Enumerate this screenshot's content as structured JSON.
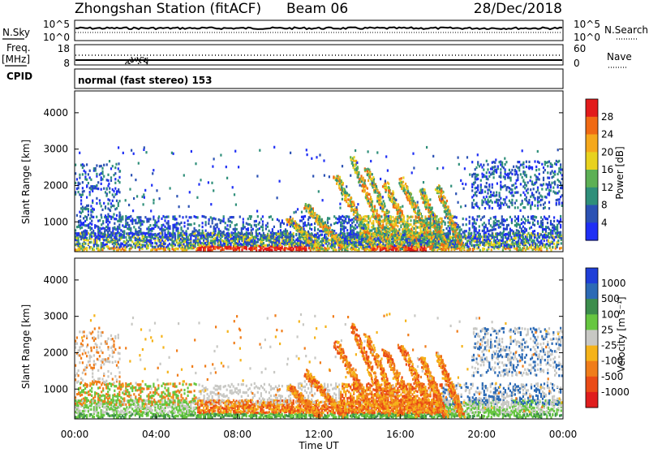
{
  "header": {
    "station": "Zhongshan Station (fitACF)",
    "beam": "Beam 06",
    "date": "28/Dec/2018"
  },
  "side_labels": {
    "nsky": "N.Sky",
    "freq_top": "Freq.",
    "freq_unit": "[MHz]",
    "cpid": "CPID",
    "nsearch": "N.Search",
    "nave": "Nave"
  },
  "nsky_axis": {
    "ticks": [
      "10^5",
      "10^0"
    ]
  },
  "freq_axis": {
    "ticks": [
      "18",
      "8"
    ]
  },
  "nsearch_axis": {
    "ticks": [
      "10^5",
      "10^0"
    ]
  },
  "nave_axis": {
    "ticks": [
      "60",
      "0"
    ]
  },
  "cpid_text": "normal (fast stereo) 153",
  "chart_data": [
    {
      "type": "heatmap",
      "panel": "power",
      "xlabel": "",
      "ylabel": "Slant Range [km]",
      "yticks": [
        "1000",
        "2000",
        "3000",
        "4000"
      ],
      "ylim": [
        180,
        4600
      ],
      "xlim": [
        0,
        24
      ],
      "colorbar_label": "Power [dB]",
      "colorbar_ticks": [
        "4",
        "8",
        "12",
        "16",
        "20",
        "24",
        "28"
      ],
      "colorbar_colors": [
        "#1f2ff5",
        "#2b52b4",
        "#2f8f7a",
        "#5db055",
        "#e8d21e",
        "#f5a81c",
        "#f06a14",
        "#e21b1b"
      ]
    },
    {
      "type": "heatmap",
      "panel": "velocity",
      "xlabel": "Time UT",
      "ylabel": "Slant Range [km]",
      "yticks": [
        "1000",
        "2000",
        "3000",
        "4000"
      ],
      "ylim": [
        180,
        4600
      ],
      "xlim": [
        0,
        24
      ],
      "xticks": [
        "00:00",
        "04:00",
        "08:00",
        "12:00",
        "16:00",
        "20:00",
        "00:00"
      ],
      "colorbar_label": "Velocity [m s⁻¹]",
      "colorbar_ticks": [
        "1000",
        "500",
        "100",
        "25",
        "-25",
        "-100",
        "-500",
        "-1000"
      ],
      "colorbar_colors": [
        "#1f3fd8",
        "#2c6ab5",
        "#3c8d4c",
        "#66c640",
        "#c8c8c4",
        "#f5b31a",
        "#f07d1a",
        "#ea4b16",
        "#e01d1d"
      ]
    }
  ]
}
